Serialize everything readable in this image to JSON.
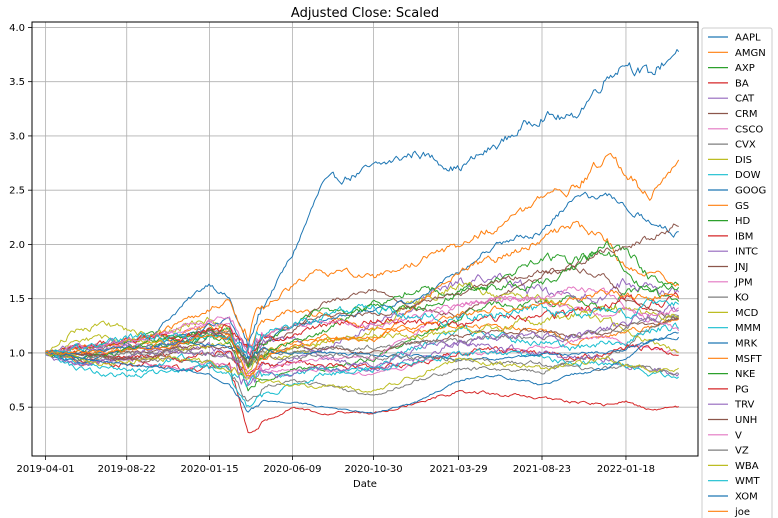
{
  "chart_data": {
    "type": "line",
    "title": "Adjusted Close: Scaled",
    "xlabel": "Date",
    "ylabel": "",
    "x_tick_labels": [
      "2019-04-01",
      "2019-08-22",
      "2020-01-15",
      "2020-06-09",
      "2020-10-30",
      "2021-03-29",
      "2021-08-23",
      "2022-01-18"
    ],
    "x_tick_dates": [
      "2019-04-01",
      "2019-08-22",
      "2020-01-15",
      "2020-06-09",
      "2020-10-30",
      "2021-03-29",
      "2021-08-23",
      "2022-01-18"
    ],
    "xlim": [
      "2019-03-08",
      "2022-05-25"
    ],
    "y_ticks": [
      0.5,
      1.0,
      1.5,
      2.0,
      2.5,
      3.0,
      3.5,
      4.0
    ],
    "y_tick_labels": [
      "0.5",
      "1.0",
      "1.5",
      "2.0",
      "2.5",
      "3.0",
      "3.5",
      "4.0"
    ],
    "ylim": [
      0.05,
      4.05
    ],
    "grid": true,
    "legend_position": "outside-right",
    "crash_date": "2020-03-23",
    "x": [
      "2019-04-01",
      "2019-06-01",
      "2019-08-01",
      "2019-10-01",
      "2019-12-01",
      "2020-01-15",
      "2020-02-19",
      "2020-03-23",
      "2020-04-15",
      "2020-06-09",
      "2020-08-01",
      "2020-10-30",
      "2021-01-15",
      "2021-03-29",
      "2021-06-01",
      "2021-08-23",
      "2021-10-15",
      "2021-12-15",
      "2022-01-18",
      "2022-03-01",
      "2022-04-22"
    ],
    "series": [
      {
        "name": "AAPL",
        "color": "#1f77b4",
        "values": [
          1.0,
          0.95,
          1.05,
          1.15,
          1.45,
          1.65,
          1.5,
          1.05,
          1.4,
          1.9,
          2.55,
          2.7,
          2.85,
          2.7,
          2.9,
          3.2,
          3.15,
          3.55,
          3.7,
          3.55,
          3.82
        ]
      },
      {
        "name": "AMGN",
        "color": "#ff7f0e",
        "values": [
          1.0,
          0.9,
          1.0,
          1.1,
          1.2,
          1.25,
          1.2,
          1.05,
          1.3,
          1.4,
          1.35,
          1.2,
          1.2,
          1.25,
          1.25,
          1.2,
          1.1,
          1.15,
          1.2,
          1.25,
          1.3
        ]
      },
      {
        "name": "AXP",
        "color": "#2ca02c",
        "values": [
          1.0,
          1.05,
          1.08,
          1.05,
          1.12,
          1.15,
          1.1,
          0.65,
          0.75,
          0.85,
          0.85,
          0.95,
          1.15,
          1.3,
          1.45,
          1.45,
          1.5,
          1.4,
          1.55,
          1.6,
          1.65
        ]
      },
      {
        "name": "BA",
        "color": "#d62728",
        "values": [
          1.0,
          0.95,
          0.9,
          0.9,
          0.85,
          0.85,
          0.9,
          0.27,
          0.35,
          0.5,
          0.45,
          0.45,
          0.55,
          0.65,
          0.62,
          0.58,
          0.55,
          0.52,
          0.55,
          0.48,
          0.5
        ]
      },
      {
        "name": "CAT",
        "color": "#9467bd",
        "values": [
          1.0,
          0.9,
          0.92,
          0.98,
          1.05,
          1.05,
          1.0,
          0.8,
          0.85,
          0.95,
          1.05,
          1.25,
          1.45,
          1.65,
          1.7,
          1.55,
          1.5,
          1.55,
          1.65,
          1.6,
          1.55
        ]
      },
      {
        "name": "CRM",
        "color": "#8c564b",
        "values": [
          1.0,
          0.95,
          1.0,
          1.0,
          1.05,
          1.15,
          1.2,
          0.9,
          1.1,
          1.2,
          1.45,
          1.6,
          1.4,
          1.35,
          1.5,
          1.7,
          1.8,
          1.7,
          1.5,
          1.4,
          1.3
        ]
      },
      {
        "name": "CSCO",
        "color": "#e377c2",
        "values": [
          1.0,
          1.05,
          0.95,
          0.9,
          0.85,
          0.9,
          0.88,
          0.75,
          0.85,
          0.85,
          0.85,
          0.8,
          0.9,
          1.0,
          1.0,
          1.05,
          1.1,
          1.15,
          1.1,
          1.05,
          1.0
        ]
      },
      {
        "name": "CVX",
        "color": "#7f7f7f",
        "values": [
          1.0,
          0.98,
          0.95,
          0.95,
          0.93,
          0.9,
          0.85,
          0.55,
          0.7,
          0.75,
          0.7,
          0.6,
          0.75,
          0.85,
          0.85,
          0.82,
          0.95,
          0.95,
          1.05,
          1.25,
          1.35
        ]
      },
      {
        "name": "DIS",
        "color": "#bcbd22",
        "values": [
          1.0,
          1.25,
          1.25,
          1.15,
          1.25,
          1.3,
          1.25,
          0.85,
          0.95,
          1.0,
          1.1,
          1.2,
          1.5,
          1.65,
          1.55,
          1.5,
          1.4,
          1.3,
          1.2,
          1.1,
          1.0
        ]
      },
      {
        "name": "DOW",
        "color": "#17becf",
        "values": [
          1.0,
          0.9,
          0.85,
          0.85,
          0.95,
          0.85,
          0.8,
          0.5,
          0.6,
          0.7,
          0.8,
          0.85,
          1.05,
          1.2,
          1.15,
          1.1,
          1.05,
          1.1,
          1.1,
          1.2,
          1.25
        ]
      },
      {
        "name": "GOOG",
        "color": "#1f77b4",
        "values": [
          1.0,
          0.9,
          1.0,
          1.05,
          1.15,
          1.25,
          1.3,
          0.95,
          1.1,
          1.25,
          1.3,
          1.4,
          1.5,
          1.75,
          2.0,
          2.1,
          2.4,
          2.45,
          2.35,
          2.2,
          2.1
        ]
      },
      {
        "name": "GS",
        "color": "#ff7f0e",
        "values": [
          1.0,
          1.0,
          1.05,
          1.05,
          1.15,
          1.2,
          1.15,
          0.85,
          1.0,
          1.1,
          1.15,
          1.1,
          1.45,
          1.75,
          1.85,
          2.05,
          2.2,
          2.05,
          1.8,
          1.75,
          1.65
        ]
      },
      {
        "name": "HD",
        "color": "#2ca02c",
        "values": [
          1.0,
          1.0,
          1.1,
          1.15,
          1.1,
          1.15,
          1.2,
          0.9,
          1.1,
          1.25,
          1.4,
          1.4,
          1.4,
          1.55,
          1.6,
          1.65,
          1.75,
          2.0,
          1.95,
          1.7,
          1.6
        ]
      },
      {
        "name": "IBM",
        "color": "#d62728",
        "values": [
          1.0,
          1.0,
          0.95,
          0.98,
          0.95,
          1.0,
          1.0,
          0.8,
          0.85,
          0.9,
          0.88,
          0.85,
          0.9,
          1.0,
          1.05,
          1.0,
          0.95,
          1.0,
          1.05,
          1.05,
          1.0
        ]
      },
      {
        "name": "INTC",
        "color": "#9467bd",
        "values": [
          1.0,
          0.88,
          0.92,
          1.05,
          1.1,
          1.2,
          1.15,
          1.0,
          1.1,
          1.15,
          0.95,
          0.85,
          0.95,
          1.1,
          1.05,
          1.0,
          0.95,
          0.95,
          0.9,
          0.85,
          0.8
        ]
      },
      {
        "name": "JNJ",
        "color": "#8c564b",
        "values": [
          1.0,
          1.0,
          0.95,
          0.95,
          1.02,
          1.05,
          1.05,
          0.9,
          1.02,
          1.05,
          1.05,
          1.0,
          1.1,
          1.15,
          1.2,
          1.2,
          1.15,
          1.2,
          1.25,
          1.25,
          1.3
        ]
      },
      {
        "name": "JPM",
        "color": "#e377c2",
        "values": [
          1.0,
          1.05,
          1.05,
          1.15,
          1.25,
          1.3,
          1.25,
          0.8,
          0.85,
          0.9,
          0.95,
          0.95,
          1.2,
          1.45,
          1.5,
          1.5,
          1.6,
          1.55,
          1.4,
          1.3,
          1.2
        ]
      },
      {
        "name": "KO",
        "color": "#7f7f7f",
        "values": [
          1.0,
          1.05,
          1.1,
          1.15,
          1.15,
          1.2,
          1.2,
          0.9,
          1.0,
          1.0,
          1.05,
          1.05,
          1.1,
          1.1,
          1.15,
          1.15,
          1.15,
          1.2,
          1.25,
          1.3,
          1.35
        ]
      },
      {
        "name": "MCD",
        "color": "#bcbd22",
        "values": [
          1.0,
          1.1,
          1.15,
          1.1,
          1.05,
          1.05,
          1.1,
          0.85,
          1.0,
          1.05,
          1.1,
          1.15,
          1.15,
          1.2,
          1.25,
          1.3,
          1.35,
          1.4,
          1.4,
          1.35,
          1.35
        ]
      },
      {
        "name": "MMM",
        "color": "#17becf",
        "values": [
          1.0,
          0.85,
          0.8,
          0.8,
          0.85,
          0.9,
          0.85,
          0.7,
          0.78,
          0.8,
          0.85,
          0.85,
          0.92,
          0.98,
          1.0,
          0.95,
          0.9,
          0.92,
          0.88,
          0.8,
          0.78
        ]
      },
      {
        "name": "MRK",
        "color": "#1f77b4",
        "values": [
          1.0,
          1.0,
          1.05,
          1.05,
          1.1,
          1.08,
          1.05,
          0.95,
          1.0,
          1.0,
          1.0,
          0.98,
          0.97,
          0.95,
          0.95,
          0.98,
          1.0,
          1.0,
          1.05,
          1.1,
          1.2
        ]
      },
      {
        "name": "MSFT",
        "color": "#ff7f0e",
        "values": [
          1.0,
          1.05,
          1.1,
          1.15,
          1.3,
          1.4,
          1.5,
          1.2,
          1.45,
          1.6,
          1.75,
          1.7,
          1.85,
          2.0,
          2.15,
          2.4,
          2.5,
          2.8,
          2.65,
          2.45,
          2.7
        ]
      },
      {
        "name": "NKE",
        "color": "#2ca02c",
        "values": [
          1.0,
          0.95,
          1.0,
          1.1,
          1.15,
          1.2,
          1.15,
          0.85,
          1.0,
          1.1,
          1.2,
          1.45,
          1.6,
          1.55,
          1.65,
          1.9,
          1.85,
          1.95,
          1.75,
          1.55,
          1.45
        ]
      },
      {
        "name": "PG",
        "color": "#d62728",
        "values": [
          1.0,
          1.05,
          1.1,
          1.15,
          1.15,
          1.2,
          1.25,
          1.0,
          1.1,
          1.15,
          1.25,
          1.3,
          1.3,
          1.25,
          1.3,
          1.35,
          1.35,
          1.45,
          1.5,
          1.45,
          1.5
        ]
      },
      {
        "name": "TRV",
        "color": "#9467bd",
        "values": [
          1.0,
          1.05,
          1.1,
          1.05,
          1.0,
          0.98,
          0.95,
          0.7,
          0.78,
          0.8,
          0.85,
          0.9,
          1.05,
          1.1,
          1.15,
          1.15,
          1.15,
          1.2,
          1.3,
          1.35,
          1.4
        ]
      },
      {
        "name": "UNH",
        "color": "#8c564b",
        "values": [
          1.0,
          1.0,
          0.95,
          0.92,
          1.1,
          1.2,
          1.15,
          0.9,
          1.15,
          1.25,
          1.35,
          1.35,
          1.45,
          1.55,
          1.65,
          1.75,
          1.8,
          1.95,
          2.0,
          2.05,
          2.2
        ]
      },
      {
        "name": "V",
        "color": "#e377c2",
        "values": [
          1.0,
          1.05,
          1.1,
          1.15,
          1.2,
          1.3,
          1.35,
          1.0,
          1.15,
          1.25,
          1.3,
          1.25,
          1.35,
          1.45,
          1.5,
          1.5,
          1.4,
          1.35,
          1.4,
          1.35,
          1.4
        ]
      },
      {
        "name": "VZ",
        "color": "#7f7f7f",
        "values": [
          1.0,
          0.95,
          0.98,
          1.0,
          1.02,
          1.0,
          0.95,
          0.9,
          0.95,
          0.95,
          0.98,
          0.97,
          0.95,
          0.95,
          0.92,
          0.9,
          0.85,
          0.85,
          0.88,
          0.85,
          0.82
        ]
      },
      {
        "name": "WBA",
        "color": "#bcbd22",
        "values": [
          1.0,
          0.95,
          0.9,
          0.95,
          0.95,
          0.9,
          0.85,
          0.75,
          0.75,
          0.7,
          0.7,
          0.65,
          0.8,
          0.95,
          0.9,
          0.85,
          0.9,
          0.95,
          0.9,
          0.85,
          0.85
        ]
      },
      {
        "name": "WMT",
        "color": "#17becf",
        "values": [
          1.0,
          1.05,
          1.1,
          1.15,
          1.15,
          1.15,
          1.15,
          1.1,
          1.2,
          1.25,
          1.35,
          1.4,
          1.35,
          1.3,
          1.35,
          1.4,
          1.35,
          1.4,
          1.35,
          1.45,
          1.45
        ]
      },
      {
        "name": "XOM",
        "color": "#1f77b4",
        "values": [
          1.0,
          0.95,
          0.9,
          0.88,
          0.85,
          0.8,
          0.7,
          0.45,
          0.55,
          0.55,
          0.5,
          0.45,
          0.55,
          0.75,
          0.8,
          0.7,
          0.8,
          0.85,
          0.95,
          1.1,
          1.15
        ]
      },
      {
        "name": "joe",
        "color": "#ff7f0e",
        "values": [
          1.0,
          1.0,
          1.02,
          1.05,
          1.1,
          1.15,
          1.15,
          0.8,
          0.95,
          1.05,
          1.1,
          1.15,
          1.25,
          1.35,
          1.4,
          1.45,
          1.5,
          1.55,
          1.55,
          1.5,
          1.55
        ]
      }
    ]
  }
}
